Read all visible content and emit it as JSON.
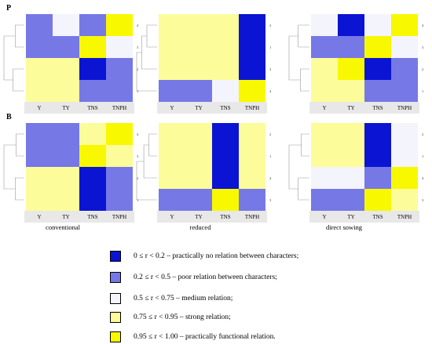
{
  "chart_data": {
    "type": "heatmap",
    "row_labels": [
      "P",
      "B"
    ],
    "column_labels": [
      "conventional",
      "reduced",
      "direct sowing"
    ],
    "x_categories": [
      "Y",
      "TY",
      "TNS",
      "TNPH"
    ],
    "value_scale": "correlation coefficient r",
    "panels": [
      {
        "row": "P",
        "column": "conventional",
        "rows": [
          "4",
          "3",
          "2",
          "1"
        ],
        "values": [
          [
            0.35,
            0.6,
            0.45,
            0.97
          ],
          [
            0.35,
            0.3,
            0.97,
            0.6
          ],
          [
            0.9,
            0.9,
            0.1,
            0.4
          ],
          [
            0.9,
            0.9,
            0.25,
            0.4
          ]
        ]
      },
      {
        "row": "P",
        "column": "reduced",
        "rows": [
          "2",
          "1",
          "3",
          "4"
        ],
        "values": [
          [
            0.85,
            0.85,
            0.8,
            0.1
          ],
          [
            0.85,
            0.8,
            0.9,
            0.1
          ],
          [
            0.85,
            0.8,
            0.85,
            0.1
          ],
          [
            0.4,
            0.35,
            0.65,
            0.97
          ]
        ]
      },
      {
        "row": "P",
        "column": "direct sowing",
        "rows": [
          "4",
          "3",
          "2",
          "1"
        ],
        "values": [
          [
            0.65,
            0.1,
            0.6,
            0.97
          ],
          [
            0.35,
            0.2,
            0.97,
            0.7
          ],
          [
            0.9,
            0.97,
            0.1,
            0.35
          ],
          [
            0.9,
            0.9,
            0.2,
            0.45
          ]
        ]
      },
      {
        "row": "B",
        "column": "conventional",
        "rows": [
          "4",
          "3",
          "2",
          "1"
        ],
        "values": [
          [
            0.25,
            0.2,
            0.85,
            0.97
          ],
          [
            0.25,
            0.2,
            0.97,
            0.8
          ],
          [
            0.9,
            0.9,
            0.05,
            0.35
          ],
          [
            0.9,
            0.9,
            0.1,
            0.35
          ]
        ]
      },
      {
        "row": "B",
        "column": "reduced",
        "rows": [
          "2",
          "1",
          "4",
          "3"
        ],
        "values": [
          [
            0.85,
            0.85,
            0.1,
            0.8
          ],
          [
            0.85,
            0.8,
            0.1,
            0.8
          ],
          [
            0.85,
            0.8,
            0.1,
            0.8
          ],
          [
            0.45,
            0.4,
            0.97,
            0.45
          ]
        ]
      },
      {
        "row": "B",
        "column": "direct sowing",
        "rows": [
          "2",
          "1",
          "4",
          "3"
        ],
        "values": [
          [
            0.9,
            0.9,
            0.05,
            0.7
          ],
          [
            0.9,
            0.9,
            0.05,
            0.7
          ],
          [
            0.65,
            0.65,
            0.35,
            0.97
          ],
          [
            0.35,
            0.35,
            0.97,
            0.8
          ]
        ]
      }
    ],
    "legend": [
      {
        "label": "0 ≤ r < 0.2 – practically no relation between characters;",
        "color": "#0a14d2"
      },
      {
        "label": "0.2 ≤ r < 0.5 – poor relation between characters;",
        "color": "#7678e6"
      },
      {
        "label": "0.5 ≤ r < 0.75 – medium relation;",
        "color": "#f4f4fc"
      },
      {
        "label": "0.75 ≤ r < 0.95 – strong relation;",
        "color": "#fcfc9a"
      },
      {
        "label": "0.95 ≤ r < 1.00 – practically functional relation.",
        "color": "#f8f800"
      }
    ]
  }
}
